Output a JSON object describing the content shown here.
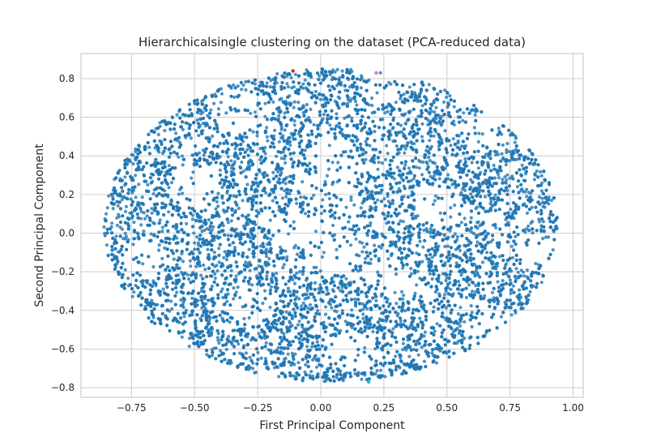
{
  "chart_data": {
    "type": "scatter",
    "title": "Hierarchicalsingle clustering on the dataset (PCA-reduced data)",
    "xlabel": "First Principal Component",
    "ylabel": "Second Principal Component",
    "xlim": [
      -0.95,
      1.04
    ],
    "ylim": [
      -0.85,
      0.93
    ],
    "xticks": [
      -0.75,
      -0.5,
      -0.25,
      0.0,
      0.25,
      0.5,
      0.75,
      1.0
    ],
    "xtick_labels": [
      "−0.75",
      "−0.50",
      "−0.25",
      "0.00",
      "0.25",
      "0.50",
      "0.75",
      "1.00"
    ],
    "yticks": [
      -0.8,
      -0.6,
      -0.4,
      -0.2,
      0.0,
      0.2,
      0.4,
      0.6,
      0.8
    ],
    "ytick_labels": [
      "−0.8",
      "−0.6",
      "−0.4",
      "−0.2",
      "0.0",
      "0.2",
      "0.4",
      "0.6",
      "0.8"
    ],
    "grid": true,
    "series": [
      {
        "color": "#1f77b4",
        "x_range": [
          -0.86,
          0.94
        ],
        "y_range": [
          -0.77,
          0.85
        ]
      },
      {
        "color": "#d62728",
        "points": [
          [
            -0.11,
            0.84
          ]
        ]
      },
      {
        "color": "#e377c2",
        "points": [
          [
            0.22,
            0.83
          ]
        ]
      },
      {
        "color": "#17becf",
        "points": [
          [
            0.19,
            -0.77
          ]
        ]
      }
    ]
  }
}
